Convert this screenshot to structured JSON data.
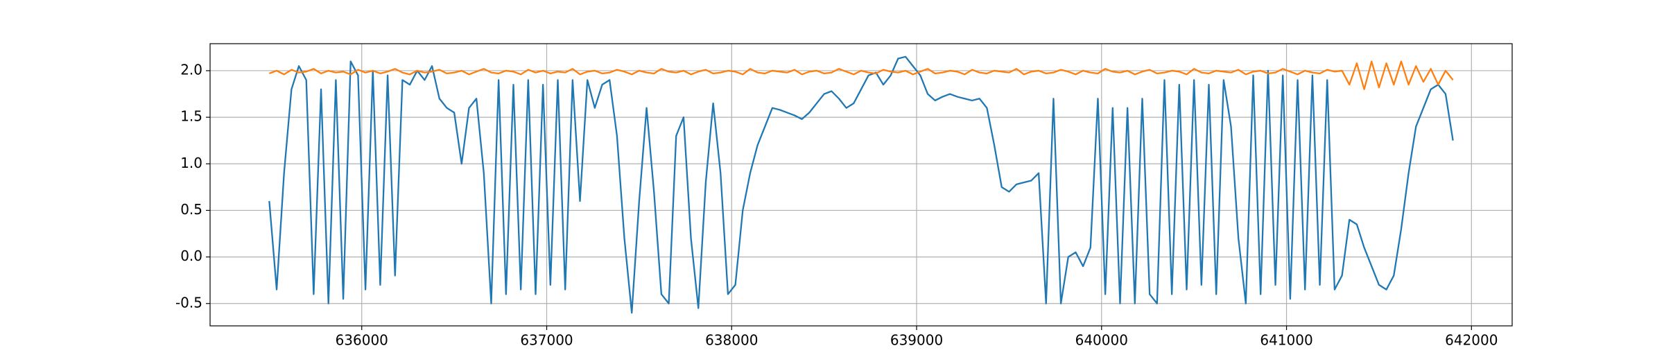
{
  "chart_data": {
    "type": "line",
    "x": [
      635500,
      635540,
      635580,
      635620,
      635660,
      635700,
      635740,
      635780,
      635820,
      635860,
      635900,
      635940,
      635980,
      636020,
      636060,
      636100,
      636140,
      636180,
      636220,
      636260,
      636300,
      636340,
      636380,
      636420,
      636460,
      636500,
      636540,
      636580,
      636620,
      636660,
      636700,
      636740,
      636780,
      636820,
      636860,
      636900,
      636940,
      636980,
      637020,
      637060,
      637100,
      637140,
      637180,
      637220,
      637260,
      637300,
      637340,
      637380,
      637420,
      637460,
      637500,
      637540,
      637580,
      637620,
      637660,
      637700,
      637740,
      637780,
      637820,
      637860,
      637900,
      637940,
      637980,
      638020,
      638060,
      638100,
      638140,
      638180,
      638220,
      638260,
      638300,
      638340,
      638380,
      638420,
      638460,
      638500,
      638540,
      638580,
      638620,
      638660,
      638700,
      638740,
      638780,
      638820,
      638860,
      638900,
      638940,
      638980,
      639020,
      639060,
      639100,
      639140,
      639180,
      639220,
      639260,
      639300,
      639340,
      639380,
      639420,
      639460,
      639500,
      639540,
      639580,
      639620,
      639660,
      639700,
      639740,
      639780,
      639820,
      639860,
      639900,
      639940,
      639980,
      640020,
      640060,
      640100,
      640140,
      640180,
      640220,
      640260,
      640300,
      640340,
      640380,
      640420,
      640460,
      640500,
      640540,
      640580,
      640620,
      640660,
      640700,
      640740,
      640780,
      640820,
      640860,
      640900,
      640940,
      640980,
      641020,
      641060,
      641100,
      641140,
      641180,
      641220,
      641260,
      641300,
      641340,
      641380,
      641420,
      641460,
      641500,
      641540,
      641580,
      641620,
      641660,
      641700,
      641740,
      641780,
      641820,
      641860,
      641900
    ],
    "series": [
      {
        "color": "#1f77b4",
        "values": [
          0.6,
          -0.35,
          0.9,
          1.8,
          2.05,
          1.9,
          -0.4,
          1.8,
          -0.5,
          1.9,
          -0.45,
          2.1,
          1.95,
          -0.35,
          2.0,
          -0.3,
          1.95,
          -0.2,
          1.9,
          1.85,
          2.0,
          1.9,
          2.05,
          1.7,
          1.6,
          1.55,
          1.0,
          1.6,
          1.7,
          0.9,
          -0.5,
          1.9,
          -0.4,
          1.85,
          -0.35,
          1.9,
          -0.4,
          1.85,
          -0.3,
          1.9,
          -0.35,
          1.9,
          0.6,
          1.9,
          1.6,
          1.85,
          1.9,
          1.3,
          0.2,
          -0.6,
          0.6,
          1.6,
          0.7,
          -0.4,
          -0.5,
          1.3,
          1.5,
          0.2,
          -0.55,
          0.8,
          1.65,
          0.9,
          -0.4,
          -0.3,
          0.5,
          0.9,
          1.2,
          1.4,
          1.6,
          1.58,
          1.55,
          1.52,
          1.48,
          1.55,
          1.65,
          1.75,
          1.78,
          1.7,
          1.6,
          1.65,
          1.8,
          1.95,
          1.98,
          1.85,
          1.95,
          2.13,
          2.15,
          2.05,
          1.95,
          1.75,
          1.68,
          1.72,
          1.75,
          1.72,
          1.7,
          1.68,
          1.7,
          1.6,
          1.2,
          0.75,
          0.7,
          0.78,
          0.8,
          0.82,
          0.9,
          -0.5,
          1.7,
          -0.5,
          0.0,
          0.05,
          -0.1,
          0.1,
          1.7,
          -0.4,
          1.6,
          -0.5,
          1.6,
          -0.5,
          1.7,
          -0.4,
          -0.5,
          1.9,
          -0.4,
          1.85,
          -0.35,
          1.9,
          -0.3,
          1.85,
          -0.4,
          1.9,
          1.4,
          0.2,
          -0.5,
          1.95,
          -0.4,
          2.0,
          -0.3,
          1.95,
          -0.45,
          1.9,
          -0.35,
          1.95,
          -0.3,
          1.9,
          -0.35,
          -0.2,
          0.4,
          0.35,
          0.1,
          -0.1,
          -0.3,
          -0.35,
          -0.2,
          0.3,
          0.9,
          1.4,
          1.6,
          1.8,
          1.85,
          1.75,
          1.25
        ]
      },
      {
        "color": "#ff7f0e",
        "values": [
          1.97,
          2.0,
          1.96,
          2.01,
          1.98,
          1.99,
          2.02,
          1.97,
          2.0,
          1.98,
          1.99,
          1.96,
          2.01,
          1.98,
          2.0,
          1.97,
          1.99,
          2.02,
          1.98,
          1.96,
          2.0,
          1.98,
          1.99,
          2.01,
          1.97,
          1.98,
          2.0,
          1.96,
          1.99,
          2.02,
          1.98,
          1.97,
          2.0,
          1.99,
          1.96,
          2.01,
          1.98,
          2.0,
          1.97,
          1.99,
          1.98,
          2.02,
          1.96,
          1.99,
          2.0,
          1.97,
          1.98,
          2.01,
          1.99,
          1.96,
          2.0,
          1.98,
          1.97,
          2.02,
          1.99,
          1.98,
          2.0,
          1.96,
          1.99,
          2.01,
          1.97,
          1.98,
          2.0,
          1.99,
          1.96,
          2.02,
          1.98,
          1.97,
          2.0,
          1.99,
          1.98,
          2.01,
          1.96,
          1.99,
          2.0,
          1.97,
          1.98,
          2.02,
          1.99,
          1.96,
          2.0,
          1.98,
          1.97,
          2.01,
          1.99,
          1.98,
          2.0,
          1.96,
          1.99,
          2.02,
          1.97,
          1.98,
          2.0,
          1.99,
          1.96,
          2.01,
          1.98,
          1.97,
          2.0,
          1.99,
          1.98,
          2.02,
          1.96,
          1.99,
          2.0,
          1.97,
          1.98,
          2.01,
          1.99,
          1.96,
          2.0,
          1.98,
          1.97,
          2.02,
          1.99,
          1.98,
          2.0,
          1.96,
          1.99,
          2.01,
          1.97,
          1.98,
          2.0,
          1.99,
          1.96,
          2.02,
          1.98,
          1.97,
          2.0,
          1.99,
          1.98,
          2.01,
          1.96,
          1.99,
          2.0,
          1.97,
          1.98,
          2.02,
          1.99,
          1.96,
          2.0,
          1.98,
          1.97,
          2.01,
          1.99,
          2.0,
          1.85,
          2.08,
          1.8,
          2.1,
          1.82,
          2.08,
          1.85,
          2.1,
          1.85,
          2.05,
          1.88,
          2.02,
          1.85,
          2.0,
          1.9
        ]
      }
    ],
    "xlim": [
      635180,
      642220
    ],
    "ylim": [
      -0.74,
      2.29
    ],
    "xticks": [
      636000,
      637000,
      638000,
      639000,
      640000,
      641000,
      642000
    ],
    "yticks": [
      -0.5,
      0.0,
      0.5,
      1.0,
      1.5,
      2.0
    ],
    "grid": true
  }
}
